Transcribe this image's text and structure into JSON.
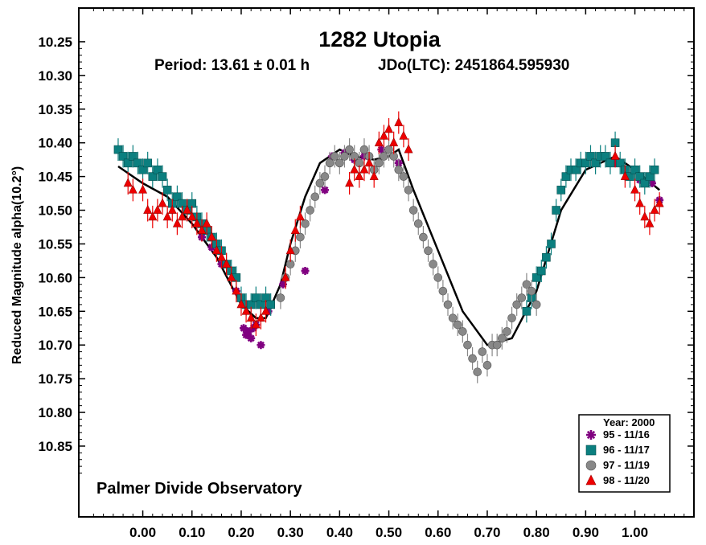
{
  "chart_data": {
    "type": "scatter",
    "title": "1282 Utopia",
    "subtitle_period": "Period: 13.61 ± 0.01 h",
    "subtitle_epoch": "JDo(LTC): 2451864.595930",
    "xlabel": "",
    "ylabel": "Reduced Magnitude alpha(10.2°)",
    "annotation": "Palmer Divide Observatory",
    "xlim": [
      -0.13,
      1.12
    ],
    "ylim": [
      10.2,
      10.955
    ],
    "y_inverted": true,
    "grid": false,
    "x_ticks": [
      "0.00",
      "0.10",
      "0.20",
      "0.30",
      "0.40",
      "0.50",
      "0.60",
      "0.70",
      "0.80",
      "0.90",
      "1.00"
    ],
    "y_ticks": [
      "10.25",
      "10.30",
      "10.35",
      "10.40",
      "10.45",
      "10.50",
      "10.55",
      "10.60",
      "10.65",
      "10.70",
      "10.75",
      "10.80",
      "10.85"
    ],
    "legend": {
      "title": "Year: 2000",
      "position": "bottom-right",
      "entries": [
        {
          "label": "95 - 11/16",
          "marker": "star",
          "color": "#800080"
        },
        {
          "label": "96 - 11/17",
          "marker": "square",
          "color": "#0b7f7f"
        },
        {
          "label": "97 - 11/19",
          "marker": "circle",
          "color": "#888888"
        },
        {
          "label": "98 - 11/20",
          "marker": "triangle",
          "color": "#ee0000"
        }
      ]
    },
    "fit_curve": {
      "x": [
        -0.05,
        0.0,
        0.05,
        0.1,
        0.15,
        0.2,
        0.23,
        0.25,
        0.28,
        0.3,
        0.33,
        0.36,
        0.4,
        0.43,
        0.47,
        0.5,
        0.52,
        0.55,
        0.6,
        0.65,
        0.7,
        0.75,
        0.8,
        0.85,
        0.9,
        0.93,
        0.96,
        1.0,
        1.05
      ],
      "y": [
        10.435,
        10.46,
        10.48,
        10.52,
        10.57,
        10.64,
        10.66,
        10.66,
        10.61,
        10.55,
        10.48,
        10.43,
        10.41,
        10.42,
        10.425,
        10.42,
        10.41,
        10.47,
        10.56,
        10.65,
        10.7,
        10.69,
        10.62,
        10.5,
        10.44,
        10.43,
        10.42,
        10.44,
        10.47
      ]
    },
    "series": [
      {
        "name": "95 - 11/16",
        "x": [
          0.12,
          0.14,
          0.16,
          0.19,
          0.205,
          0.21,
          0.215,
          0.22,
          0.225,
          0.23,
          0.24,
          0.255,
          0.285,
          0.33,
          0.37,
          0.385,
          0.41,
          0.43,
          0.45,
          0.485,
          0.52,
          0.96,
          1.01,
          1.035,
          1.05
        ],
        "y": [
          10.54,
          10.555,
          10.58,
          10.62,
          10.675,
          10.685,
          10.68,
          10.69,
          10.675,
          10.67,
          10.7,
          10.65,
          10.61,
          10.59,
          10.47,
          10.42,
          10.415,
          10.425,
          10.42,
          10.41,
          10.43,
          10.43,
          10.455,
          10.46,
          10.485
        ]
      },
      {
        "name": "96 - 11/17",
        "x": [
          -0.05,
          -0.04,
          -0.03,
          -0.02,
          -0.01,
          0.0,
          0.01,
          0.02,
          0.03,
          0.04,
          0.05,
          0.06,
          0.07,
          0.08,
          0.09,
          0.1,
          0.11,
          0.12,
          0.13,
          0.14,
          0.15,
          0.16,
          0.17,
          0.18,
          0.19,
          0.2,
          0.21,
          0.22,
          0.23,
          0.24,
          0.25,
          0.26,
          0.78,
          0.79,
          0.8,
          0.81,
          0.82,
          0.83,
          0.84,
          0.85,
          0.86,
          0.87,
          0.88,
          0.89,
          0.9,
          0.91,
          0.92,
          0.93,
          0.94,
          0.95,
          0.96,
          0.97,
          0.98,
          0.99,
          1.0,
          1.01,
          1.02,
          1.03,
          1.04
        ],
        "y": [
          10.41,
          10.42,
          10.43,
          10.42,
          10.43,
          10.44,
          10.43,
          10.45,
          10.44,
          10.45,
          10.47,
          10.49,
          10.48,
          10.49,
          10.5,
          10.49,
          10.51,
          10.52,
          10.53,
          10.54,
          10.55,
          10.56,
          10.58,
          10.59,
          10.6,
          10.63,
          10.64,
          10.64,
          10.63,
          10.64,
          10.63,
          10.64,
          10.65,
          10.63,
          10.6,
          10.59,
          10.57,
          10.55,
          10.5,
          10.47,
          10.45,
          10.44,
          10.44,
          10.43,
          10.43,
          10.42,
          10.43,
          10.42,
          10.42,
          10.43,
          10.4,
          10.43,
          10.44,
          10.45,
          10.44,
          10.45,
          10.46,
          10.45,
          10.44
        ]
      },
      {
        "name": "97 - 11/19",
        "x": [
          0.28,
          0.29,
          0.3,
          0.31,
          0.32,
          0.33,
          0.34,
          0.35,
          0.36,
          0.37,
          0.38,
          0.39,
          0.4,
          0.41,
          0.42,
          0.43,
          0.44,
          0.45,
          0.46,
          0.47,
          0.48,
          0.49,
          0.5,
          0.51,
          0.52,
          0.53,
          0.54,
          0.55,
          0.56,
          0.57,
          0.58,
          0.59,
          0.6,
          0.61,
          0.62,
          0.63,
          0.64,
          0.65,
          0.66,
          0.67,
          0.68,
          0.69,
          0.7,
          0.71,
          0.72,
          0.73,
          0.74,
          0.75,
          0.76,
          0.77,
          0.78,
          0.79,
          0.8
        ],
        "y": [
          10.63,
          10.6,
          10.58,
          10.56,
          10.54,
          10.52,
          10.5,
          10.48,
          10.46,
          10.45,
          10.43,
          10.42,
          10.43,
          10.42,
          10.41,
          10.42,
          10.43,
          10.41,
          10.42,
          10.44,
          10.43,
          10.42,
          10.41,
          10.42,
          10.44,
          10.45,
          10.47,
          10.5,
          10.52,
          10.54,
          10.56,
          10.58,
          10.6,
          10.62,
          10.64,
          10.66,
          10.67,
          10.68,
          10.7,
          10.72,
          10.74,
          10.71,
          10.73,
          10.7,
          10.7,
          10.69,
          10.68,
          10.66,
          10.64,
          10.63,
          10.61,
          10.62,
          10.64
        ]
      },
      {
        "name": "98 - 11/20",
        "x": [
          -0.03,
          -0.02,
          0.0,
          0.01,
          0.02,
          0.03,
          0.04,
          0.05,
          0.06,
          0.07,
          0.08,
          0.09,
          0.1,
          0.11,
          0.12,
          0.13,
          0.14,
          0.15,
          0.16,
          0.17,
          0.18,
          0.19,
          0.2,
          0.21,
          0.22,
          0.23,
          0.24,
          0.25,
          0.29,
          0.3,
          0.31,
          0.32,
          0.42,
          0.43,
          0.44,
          0.45,
          0.46,
          0.47,
          0.48,
          0.49,
          0.5,
          0.51,
          0.52,
          0.53,
          0.54,
          0.96,
          0.98,
          1.0,
          1.01,
          1.02,
          1.03,
          1.04,
          1.05
        ],
        "y": [
          10.46,
          10.47,
          10.47,
          10.5,
          10.51,
          10.5,
          10.49,
          10.51,
          10.5,
          10.52,
          10.51,
          10.5,
          10.51,
          10.52,
          10.53,
          10.52,
          10.54,
          10.56,
          10.57,
          10.58,
          10.6,
          10.62,
          10.64,
          10.65,
          10.66,
          10.67,
          10.66,
          10.65,
          10.6,
          10.56,
          10.53,
          10.51,
          10.46,
          10.44,
          10.45,
          10.44,
          10.43,
          10.45,
          10.4,
          10.39,
          10.38,
          10.4,
          10.37,
          10.39,
          10.41,
          10.42,
          10.45,
          10.47,
          10.49,
          10.51,
          10.52,
          10.5,
          10.49
        ]
      }
    ]
  }
}
